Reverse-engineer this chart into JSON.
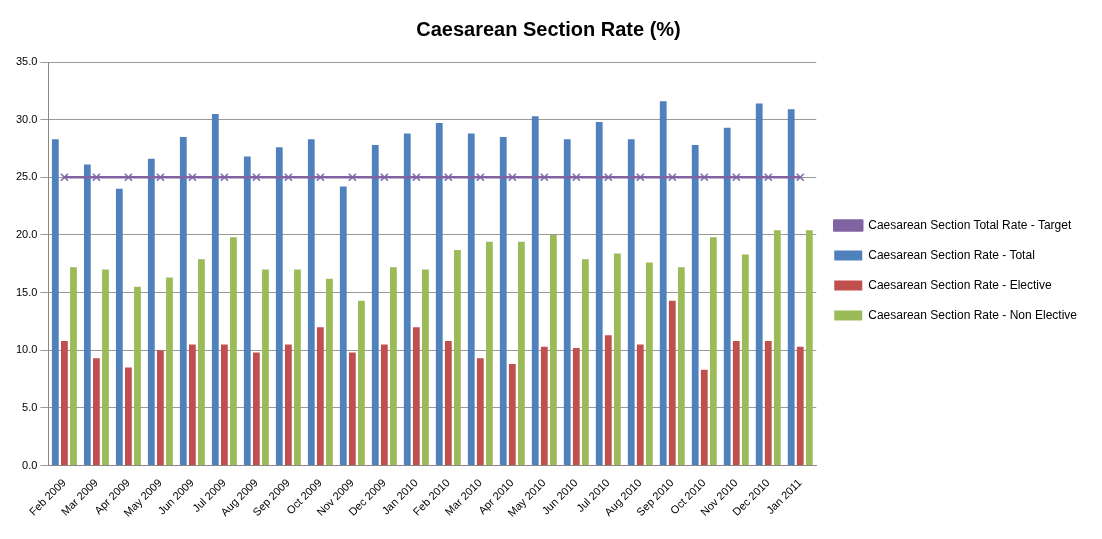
{
  "chart_data": {
    "type": "bar",
    "title": "Caesarean Section Rate (%)",
    "categories": [
      "Feb 2009",
      "Mar 2009",
      "Apr 2009",
      "May 2009",
      "Jun 2009",
      "Jul 2009",
      "Aug 2009",
      "Sep 2009",
      "Oct 2009",
      "Nov 2009",
      "Dec 2009",
      "Jan 2010",
      "Feb 2010",
      "Mar 2010",
      "Apr 2010",
      "May 2010",
      "Jun 2010",
      "Jul 2010",
      "Aug 2010",
      "Sep 2010",
      "Oct 2010",
      "Nov 2010",
      "Dec 2010",
      "Jan 2011"
    ],
    "series": [
      {
        "name": "Caesarean Section Rate - Total",
        "color": "#4f81bd",
        "values": [
          28.3,
          26.1,
          24.0,
          26.6,
          28.5,
          30.5,
          26.8,
          27.6,
          28.3,
          24.2,
          27.8,
          28.8,
          29.7,
          28.8,
          28.5,
          30.3,
          28.3,
          29.8,
          28.3,
          31.6,
          27.8,
          29.3,
          31.4,
          30.9
        ]
      },
      {
        "name": "Caesarean Section Rate - Elective",
        "color": "#c0504d",
        "values": [
          10.8,
          9.3,
          8.5,
          10.0,
          10.5,
          10.5,
          9.8,
          10.5,
          12.0,
          9.8,
          10.5,
          12.0,
          10.8,
          9.3,
          8.8,
          10.3,
          10.2,
          11.3,
          10.5,
          14.3,
          8.3,
          10.8,
          10.8,
          10.3
        ]
      },
      {
        "name": "Caesarean Section Rate - Non Elective",
        "color": "#9bbb59",
        "values": [
          17.2,
          17.0,
          15.5,
          16.3,
          17.9,
          19.8,
          17.0,
          17.0,
          16.2,
          14.3,
          17.2,
          17.0,
          18.7,
          19.4,
          19.4,
          20.0,
          17.9,
          18.4,
          17.6,
          17.2,
          19.8,
          18.3,
          20.4,
          20.4
        ]
      },
      {
        "name": "Caesarean Section Total Rate - Target",
        "type": "line",
        "color": "#8064a2",
        "marker": "cross",
        "values": [
          25,
          25,
          25,
          25,
          25,
          25,
          25,
          25,
          25,
          25,
          25,
          25,
          25,
          25,
          25,
          25,
          25,
          25,
          25,
          25,
          25,
          25,
          25,
          25
        ]
      }
    ],
    "ylim": [
      0,
      35
    ],
    "yticks": [
      {
        "value": 0,
        "label": "0.0"
      },
      {
        "value": 5,
        "label": "5.0"
      },
      {
        "value": 10,
        "label": "10.0"
      },
      {
        "value": 15,
        "label": "15.0"
      },
      {
        "value": 20,
        "label": "20.0"
      },
      {
        "value": 25,
        "label": "25.0"
      },
      {
        "value": 30,
        "label": "30.0"
      },
      {
        "value": 35,
        "label": "35.0"
      }
    ],
    "grid": "y",
    "legend": "right"
  }
}
